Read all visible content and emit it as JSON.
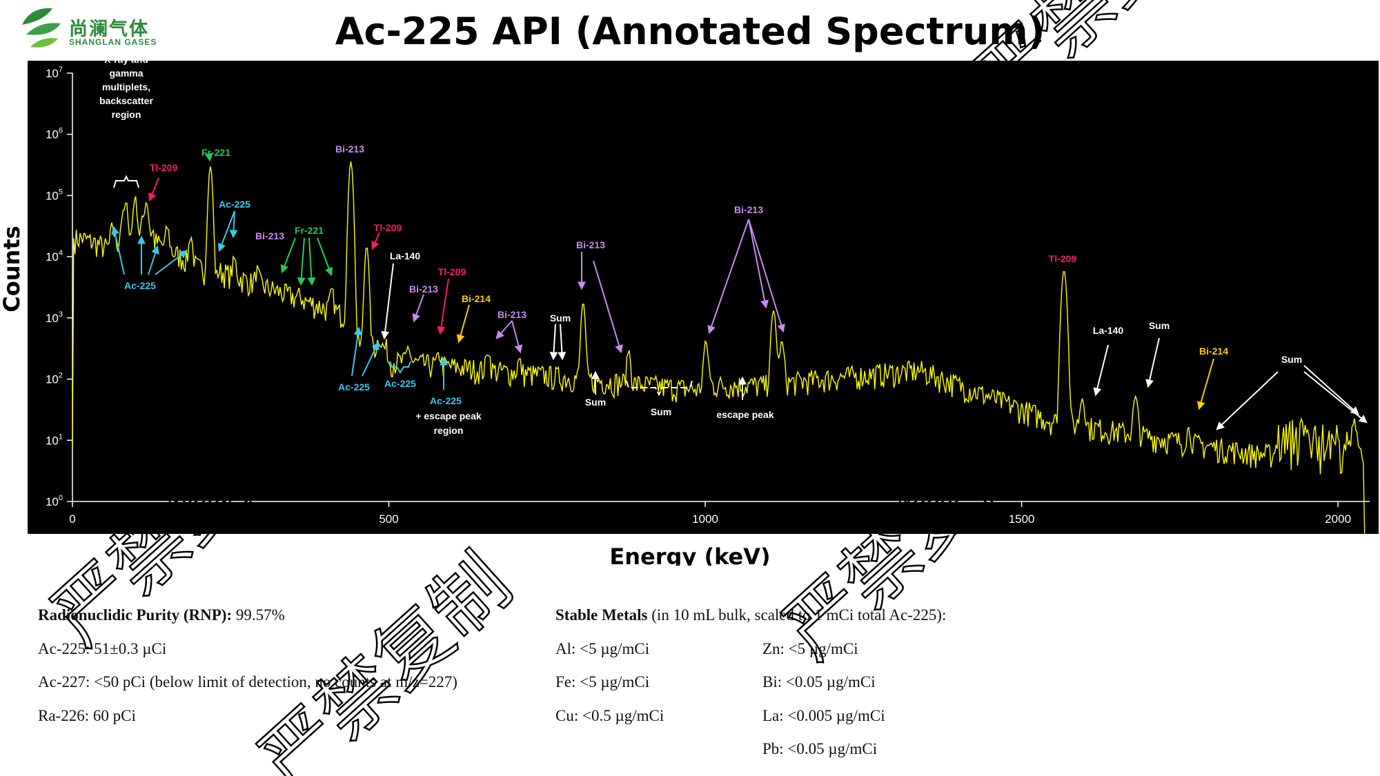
{
  "logo": {
    "name_cn": "尚澜气体",
    "name_en": "SHANGLAN GASES",
    "color": "#2a8a3a"
  },
  "chart_data": {
    "type": "line",
    "title": "Ac-225 API (Annotated Spectrum)",
    "xlabel": "Energy (keV)",
    "ylabel": "Counts",
    "yscale": "log",
    "xlim": [
      0,
      2050
    ],
    "ylim": [
      1,
      10000000
    ],
    "x_ticks": [
      "0",
      "500",
      "1000",
      "1500",
      "2000"
    ],
    "y_ticks": [
      "10^0",
      "10^1",
      "10^2",
      "10^3",
      "10^4",
      "10^5",
      "10^6",
      "10^7"
    ],
    "background": "#000000",
    "line_color": "#ffff00",
    "peaks": [
      {
        "energy": 63,
        "counts": 32000
      },
      {
        "energy": 79,
        "counts": 45000
      },
      {
        "energy": 85,
        "counts": 72000
      },
      {
        "energy": 99,
        "counts": 95000
      },
      {
        "energy": 111,
        "counts": 38000
      },
      {
        "energy": 117,
        "counts": 80000
      },
      {
        "energy": 150,
        "counts": 30000
      },
      {
        "energy": 187,
        "counts": 22000
      },
      {
        "energy": 218,
        "counts": 300000
      },
      {
        "energy": 256,
        "counts": 9000
      },
      {
        "energy": 292,
        "counts": 6000
      },
      {
        "energy": 324,
        "counts": 2700
      },
      {
        "energy": 360,
        "counts": 2300
      },
      {
        "energy": 410,
        "counts": 2800
      },
      {
        "energy": 440,
        "counts": 360000
      },
      {
        "energy": 465,
        "counts": 15000
      },
      {
        "energy": 485,
        "counts": 480
      },
      {
        "energy": 531,
        "counts": 340
      },
      {
        "energy": 580,
        "counts": 250
      },
      {
        "energy": 609,
        "counts": 160
      },
      {
        "energy": 657,
        "counts": 300
      },
      {
        "energy": 706,
        "counts": 200
      },
      {
        "energy": 807,
        "counts": 1800
      },
      {
        "energy": 879,
        "counts": 300
      },
      {
        "energy": 1001,
        "counts": 400
      },
      {
        "energy": 1108,
        "counts": 1300
      },
      {
        "energy": 1121,
        "counts": 400
      },
      {
        "energy": 1567,
        "counts": 6000
      },
      {
        "energy": 1596,
        "counts": 50
      },
      {
        "energy": 1680,
        "counts": 50
      },
      {
        "energy": 1764,
        "counts": 15
      },
      {
        "energy": 2027,
        "counts": 15
      }
    ],
    "annotations": [
      {
        "text": "X-ray and gamma multiplets, backscatter region",
        "color": "#ffffff"
      },
      {
        "text": "Tl-209",
        "color": "#ff1a66"
      },
      {
        "text": "Fr-221",
        "color": "#22cc55"
      },
      {
        "text": "Ac-225",
        "color": "#33ccee"
      },
      {
        "text": "Bi-213",
        "color": "#c88cf0"
      },
      {
        "text": "Fr-221",
        "color": "#22cc55"
      },
      {
        "text": "Ac-225",
        "color": "#33ccee"
      },
      {
        "text": "Bi-213",
        "color": "#c88cf0"
      },
      {
        "text": "Tl-209",
        "color": "#ff1a66"
      },
      {
        "text": "La-140",
        "color": "#ffffff"
      },
      {
        "text": "Bi-213",
        "color": "#c88cf0"
      },
      {
        "text": "Tl-209",
        "color": "#ff1a66"
      },
      {
        "text": "Bi-214",
        "color": "#ffcc00"
      },
      {
        "text": "Bi-213",
        "color": "#c88cf0"
      },
      {
        "text": "Sum",
        "color": "#ffffff"
      },
      {
        "text": "Bi-213",
        "color": "#c88cf0"
      },
      {
        "text": "Ac-225",
        "color": "#33ccee"
      },
      {
        "text": "Ac-225",
        "color": "#33ccee"
      },
      {
        "text": "Ac-225",
        "color": "#33ccee"
      },
      {
        "text": "+ escape peak",
        "color": "#ffffff"
      },
      {
        "text": "region",
        "color": "#ffffff"
      },
      {
        "text": "Sum",
        "color": "#ffffff"
      },
      {
        "text": "Sum",
        "color": "#ffffff"
      },
      {
        "text": "escape peak",
        "color": "#ffffff"
      },
      {
        "text": "Bi-213",
        "color": "#c88cf0"
      },
      {
        "text": "Tl-209",
        "color": "#ff1a66"
      },
      {
        "text": "La-140",
        "color": "#ffffff"
      },
      {
        "text": "Sum",
        "color": "#ffffff"
      },
      {
        "text": "Bi-214",
        "color": "#ffcc00"
      },
      {
        "text": "Sum",
        "color": "#ffffff"
      }
    ]
  },
  "purity": {
    "rnp_label": "Radionuclidic Purity (RNP):",
    "rnp_value": " 99.57%",
    "ac225": "Ac-225: 51±0.3 µCi",
    "ac227": "Ac-227: <50 pCi (below limit of detection, no counts at m/z=227)",
    "ra226": "Ra-226: 60 pCi"
  },
  "metals": {
    "label": "Stable Metals",
    "label_note": " (in 10 mL bulk, scaled to 1 mCi total Ac-225):",
    "al": "Al: <5 µg/mCi",
    "fe": "Fe: <5 µg/mCi",
    "cu": "Cu: <0.5 µg/mCi",
    "zn": "Zn: <5 µg/mCi",
    "bi": "Bi: <0.05 µg/mCi",
    "la": "La: <0.005 µg/mCi",
    "pb": "Pb: <0.05 µg/mCi"
  },
  "watermark": {
    "text": "严禁复制"
  }
}
